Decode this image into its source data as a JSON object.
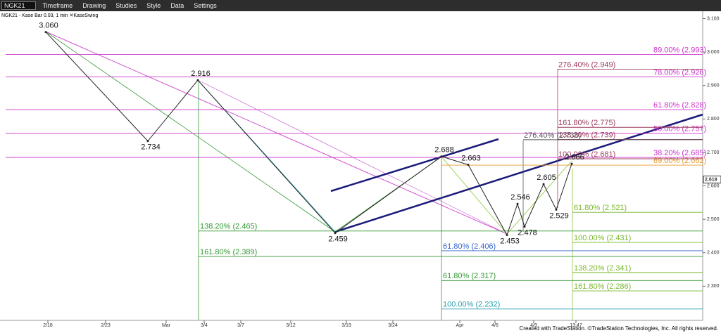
{
  "toolbar": {
    "symbol": "NGK21",
    "items": [
      "Timeframe",
      "Drawing",
      "Studies",
      "Style",
      "Data",
      "Settings"
    ]
  },
  "chart_data": {
    "type": "line",
    "subtitle": "NGK21 - Kase Bar 0.03, 1 min  ✕KaseSwing",
    "footer": "Created with TradeStation. ©TradeStation Technologies, Inc. All rights reserved.",
    "x_labels": [
      "2/18",
      "2/23",
      "Mar",
      "3/4",
      "3/7",
      "3/12",
      "3/19",
      "3/24",
      "Apr",
      "4/6",
      "4/9",
      "13:47"
    ],
    "series": [
      {
        "name": "KaseSwing",
        "color": "#222222",
        "values": [
          3.06,
          2.734,
          2.916,
          2.459,
          2.688,
          2.663,
          2.453,
          2.546,
          2.478,
          2.605,
          2.529,
          2.666
        ],
        "value_labels": [
          "3.060",
          "2.734",
          "2.916",
          "2.459",
          "2.688",
          "2.663",
          "2.453",
          "2.546",
          "2.478",
          "2.605",
          "2.529",
          "2.666"
        ]
      }
    ],
    "last_price": {
      "value": 2.619,
      "label": "2.619"
    },
    "ylim": [
      2.2,
      3.12
    ],
    "yticks": [
      {
        "value": 3.1,
        "label": "3.100"
      },
      {
        "value": 3.0,
        "label": "3.000"
      },
      {
        "value": 2.9,
        "label": "2.900"
      },
      {
        "value": 2.8,
        "label": "2.800"
      },
      {
        "value": 2.7,
        "label": "2.700"
      },
      {
        "value": 2.6,
        "label": "2.600"
      },
      {
        "value": 2.5,
        "label": "2.500"
      },
      {
        "value": 2.4,
        "label": "2.400"
      },
      {
        "value": 2.3,
        "label": "2.300"
      }
    ],
    "levels": [
      {
        "value": 2.993,
        "label": "89.00% (2.993)",
        "color": "#cc33cc"
      },
      {
        "value": 2.926,
        "label": "78.00% (2.926)",
        "color": "#cc33cc"
      },
      {
        "value": 2.828,
        "label": "61.80% (2.828)",
        "color": "#cc33cc"
      },
      {
        "value": 2.757,
        "label": "50.00% (2.757)",
        "color": "#cc33cc"
      },
      {
        "value": 2.685,
        "label": "38.20% (2.685)",
        "color": "#cc33cc"
      },
      {
        "value": 2.662,
        "label": "89.00% (2.662)",
        "color": "#e69a2e"
      },
      {
        "value": 2.949,
        "label": "276.40% (2.949)",
        "color": "#a04060"
      },
      {
        "value": 2.775,
        "label": "161.80% (2.775)",
        "color": "#a04060"
      },
      {
        "value": 2.739,
        "label": "138.20% (2.739)",
        "color": "#a04060"
      },
      {
        "value": 2.681,
        "label": "100.00% (2.681)",
        "color": "#a04060"
      },
      {
        "value": 2.738,
        "label": "276.40% (2.738)",
        "color": "#555555"
      },
      {
        "value": 2.465,
        "label": "138.20% (2.465)",
        "color": "#339933"
      },
      {
        "value": 2.389,
        "label": "161.80% (2.389)",
        "color": "#339933"
      },
      {
        "value": 2.406,
        "label": "61.80% (2.406)",
        "color": "#3366cc"
      },
      {
        "value": 2.232,
        "label": "100.00% (2.232)",
        "color": "#2aa0b0"
      },
      {
        "value": 2.317,
        "label": "61.80% (2.317)",
        "color": "#339933"
      },
      {
        "value": 2.521,
        "label": "61.80% (2.521)",
        "color": "#7ab82e"
      },
      {
        "value": 2.431,
        "label": "100.00% (2.431)",
        "color": "#7ab82e"
      },
      {
        "value": 2.341,
        "label": "138.20% (2.341)",
        "color": "#7ab82e"
      },
      {
        "value": 2.286,
        "label": "161.80% (2.286)",
        "color": "#7ab82e"
      }
    ]
  }
}
